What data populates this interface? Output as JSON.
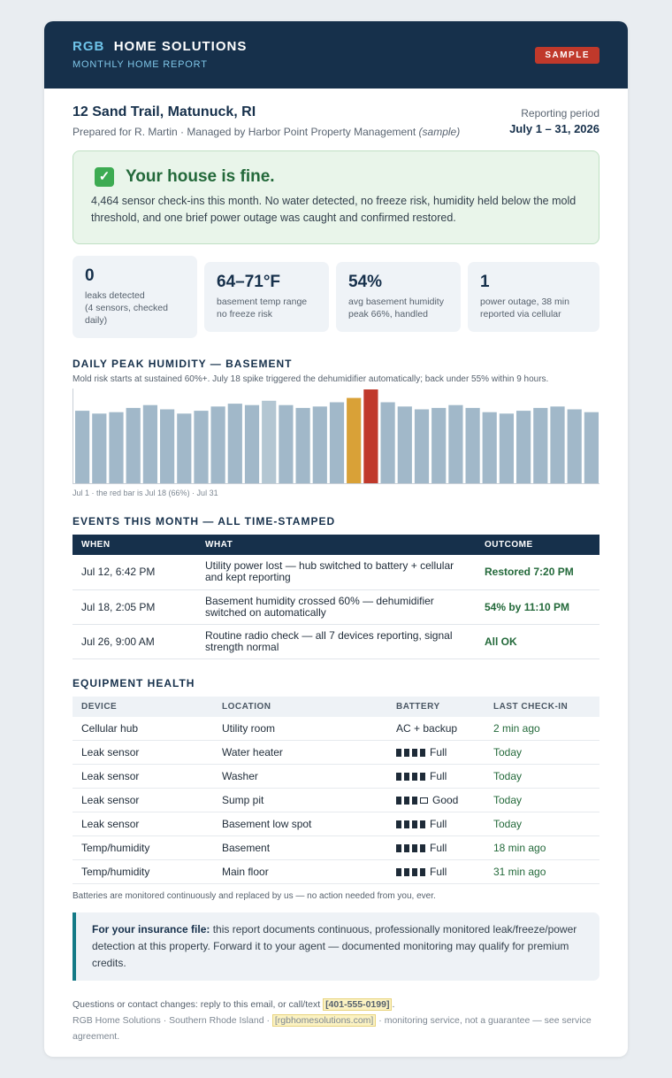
{
  "brand": {
    "accent": "RGB",
    "rest": "HOME SOLUTIONS",
    "subtitle": "MONTHLY HOME REPORT",
    "badge": "SAMPLE"
  },
  "property": {
    "address": "12 Sand Trail, Matunuck, RI",
    "prepared": "Prepared for R. Martin · Managed by Harbor Point Property Management",
    "prepared_note": "(sample)",
    "period_label": "Reporting period",
    "period_value": "July 1 – 31, 2026"
  },
  "status": {
    "icon": "check-icon",
    "title": "Your house is fine.",
    "text": "4,464 sensor check-ins this month. No water detected, no freeze risk, humidity held below the mold threshold, and one brief power outage was caught and confirmed restored."
  },
  "stats": [
    {
      "value": "0",
      "label": "leaks detected",
      "label2": "(4 sensors, checked daily)"
    },
    {
      "value": "64–71°F",
      "label": "basement temp range",
      "label2": "no freeze risk"
    },
    {
      "value": "54%",
      "label": "avg basement humidity",
      "label2": "peak 66%, handled"
    },
    {
      "value": "1",
      "label": "power outage, 38 min",
      "label2": "reported via cellular"
    }
  ],
  "humidity": {
    "title": "DAILY PEAK HUMIDITY — BASEMENT",
    "note": "Mold risk starts at sustained 60%+. July 18 spike triggered the dehumidifier automatically; back under 55% within 9 hours.",
    "axis_note": "Jul 1  ·  the red bar is Jul 18 (66%)  ·  Jul 31"
  },
  "chart_data": {
    "type": "bar",
    "title": "DAILY PEAK HUMIDITY — BASEMENT",
    "categories": [
      "1",
      "2",
      "3",
      "4",
      "5",
      "6",
      "7",
      "8",
      "9",
      "10",
      "11",
      "12",
      "13",
      "14",
      "15",
      "16",
      "17",
      "18",
      "19",
      "20",
      "21",
      "22",
      "23",
      "24",
      "25",
      "26",
      "27",
      "28",
      "29",
      "30",
      "31"
    ],
    "values": [
      51,
      49,
      50,
      53,
      55,
      52,
      49,
      51,
      54,
      56,
      55,
      58,
      55,
      53,
      54,
      57,
      60,
      66,
      57,
      54,
      52,
      53,
      55,
      53,
      50,
      49,
      51,
      53,
      54,
      52,
      50
    ],
    "ylim": [
      0,
      66
    ],
    "bar_colors": {
      "default": "#a1b8c9",
      "highlight_light": "#b3c6d2",
      "warning": "#d9a137",
      "alert": "#c0392b"
    }
  },
  "events": {
    "title": "EVENTS THIS MONTH — ALL TIME-STAMPED",
    "headers": [
      "WHEN",
      "WHAT",
      "OUTCOME"
    ],
    "rows": [
      {
        "when": "Jul 12, 6:42 PM",
        "what": "Utility power lost — hub switched to battery + cellular and kept reporting",
        "outcome": "Restored 7:20 PM"
      },
      {
        "when": "Jul 18, 2:05 PM",
        "what": "Basement humidity crossed 60% — dehumidifier switched on automatically",
        "outcome": "54% by 11:10 PM"
      },
      {
        "when": "Jul 26, 9:00 AM",
        "what": "Routine radio check — all 7 devices reporting, signal strength normal",
        "outcome": "All OK"
      }
    ]
  },
  "equipment": {
    "title": "EQUIPMENT HEALTH",
    "headers": [
      "DEVICE",
      "LOCATION",
      "BATTERY",
      "LAST CHECK-IN"
    ],
    "rows": [
      {
        "device": "Cellular hub",
        "location": "Utility room",
        "battery": "AC + backup",
        "bars": 0,
        "checkin": "2 min ago"
      },
      {
        "device": "Leak sensor",
        "location": "Water heater",
        "battery": "Full",
        "bars": 4,
        "checkin": "Today"
      },
      {
        "device": "Leak sensor",
        "location": "Washer",
        "battery": "Full",
        "bars": 4,
        "checkin": "Today"
      },
      {
        "device": "Leak sensor",
        "location": "Sump pit",
        "battery": "Good",
        "bars": 3,
        "checkin": "Today"
      },
      {
        "device": "Leak sensor",
        "location": "Basement low spot",
        "battery": "Full",
        "bars": 4,
        "checkin": "Today"
      },
      {
        "device": "Temp/humidity",
        "location": "Basement",
        "battery": "Full",
        "bars": 4,
        "checkin": "18 min ago"
      },
      {
        "device": "Temp/humidity",
        "location": "Main floor",
        "battery": "Full",
        "bars": 4,
        "checkin": "31 min ago"
      }
    ],
    "note": "Batteries are monitored continuously and replaced by us — no action needed from you, ever."
  },
  "insurance": {
    "lead": "For your insurance file:",
    "text": "this report documents continuous, professionally monitored leak/freeze/power detection at this property. Forward it to your agent — documented monitoring may qualify for premium credits."
  },
  "footer": {
    "questions": "Questions or contact changes: reply to this email, or call/text",
    "phone": "[401-555-0199]",
    "company": "RGB Home Solutions · Southern Rhode Island ·",
    "website": "[rgbhomesolutions.com]",
    "disclaimer": "· monitoring service, not a guarantee — see service agreement."
  },
  "colors": {
    "navy": "#16304b",
    "accent_blue": "#6ec3e9",
    "badge_red": "#c0392b",
    "ok_green": "#23693a",
    "teal": "#137a86"
  }
}
